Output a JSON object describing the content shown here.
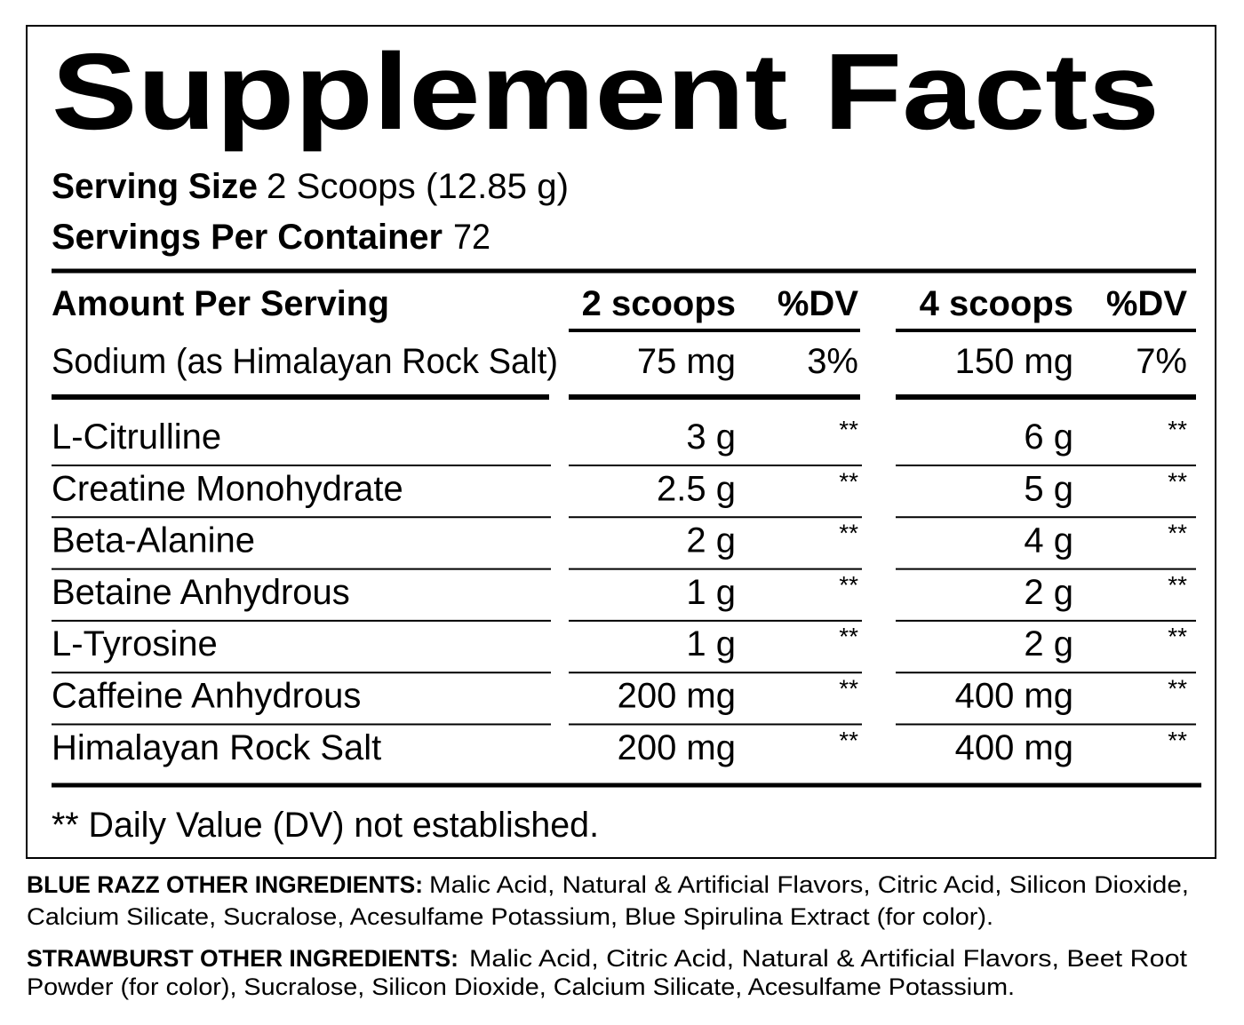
{
  "title": "Supplement Facts",
  "serving": [
    {
      "label": "Serving Size",
      "value": "2 Scoops (12.85 g)"
    },
    {
      "label": "Servings Per Container",
      "value": "72"
    }
  ],
  "table": {
    "header": [
      "Amount Per Serving",
      "2 scoops",
      "%DV",
      "4 scoops",
      "%DV"
    ],
    "rows": [
      [
        "Sodium (as Himalayan Rock Salt)",
        "75 mg",
        "3%",
        "150 mg",
        "7%"
      ],
      [
        "L-Citrulline",
        "3 g",
        "**",
        "6 g",
        "**"
      ],
      [
        "Creatine Monohydrate",
        "2.5 g",
        "**",
        "5 g",
        "**"
      ],
      [
        "Beta-Alanine",
        "2 g",
        "**",
        "4 g",
        "**"
      ],
      [
        "Betaine Anhydrous",
        "1 g",
        "**",
        "2 g",
        "**"
      ],
      [
        "L-Tyrosine",
        "1 g",
        "**",
        "2 g",
        "**"
      ],
      [
        "Caffeine Anhydrous",
        "200 mg",
        "**",
        "400 mg",
        "**"
      ],
      [
        "Himalayan Rock Salt",
        "200 mg",
        "**",
        "400 mg",
        "**"
      ]
    ]
  },
  "footnote": "** Daily Value (DV) not established.",
  "other_ingredients": [
    {
      "label": "BLUE RAZZ OTHER INGREDIENTS:",
      "lines": [
        "Malic Acid, Natural & Artificial Flavors, Citric Acid, Silicon Dioxide,",
        "Calcium Silicate, Sucralose, Acesulfame Potassium, Blue Spirulina Extract (for color)."
      ]
    },
    {
      "label": "STRAWBURST OTHER INGREDIENTS:",
      "lines": [
        "Malic Acid, Citric Acid, Natural & Artificial Flavors, Beet Root",
        "Powder (for color), Sucralose, Silicon Dioxide, Calcium Silicate, Acesulfame Potassium."
      ]
    }
  ]
}
